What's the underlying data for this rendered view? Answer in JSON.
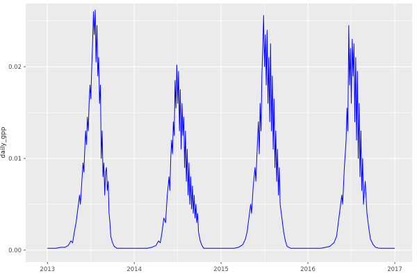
{
  "chart_data": {
    "type": "line",
    "title": "",
    "xlabel": "",
    "ylabel": "daily_gpp",
    "series_name": "daily_gpp",
    "legend": "none",
    "grid": "on",
    "xlim": [
      2012.75,
      2017.2
    ],
    "ylim": [
      -0.0013,
      0.0269
    ],
    "x_ticks": [
      2013,
      2014,
      2015,
      2016,
      2017
    ],
    "x_tick_labels": [
      "2013",
      "2014",
      "2015",
      "2016",
      "2017"
    ],
    "x_minor_ticks": [
      2013.5,
      2014.5,
      2015.5,
      2016.5
    ],
    "y_ticks": [
      0,
      0.01,
      0.02
    ],
    "y_tick_labels": [
      "0.00",
      "0.01",
      "0.02"
    ],
    "y_minor_ticks": [
      0.005,
      0.015,
      0.025
    ],
    "colors": {
      "line": "#0000FF",
      "panel_background": "#EBEBEB",
      "gridline": "#FFFFFF",
      "tick_label": "#4D4D4D",
      "tick_mark": "#333333",
      "outer_background": "#FFFFFF"
    },
    "points": [
      [
        2013.0,
        0.0002
      ],
      [
        2013.05,
        0.0002
      ],
      [
        2013.1,
        0.0002
      ],
      [
        2013.15,
        0.0003
      ],
      [
        2013.2,
        0.0003
      ],
      [
        2013.24,
        0.0005
      ],
      [
        2013.27,
        0.001
      ],
      [
        2013.29,
        0.0008
      ],
      [
        2013.31,
        0.002
      ],
      [
        2013.33,
        0.003
      ],
      [
        2013.35,
        0.0045
      ],
      [
        2013.37,
        0.006
      ],
      [
        2013.38,
        0.005
      ],
      [
        2013.4,
        0.008
      ],
      [
        2013.41,
        0.0095
      ],
      [
        2013.42,
        0.0085
      ],
      [
        2013.43,
        0.011
      ],
      [
        2013.44,
        0.013
      ],
      [
        2013.45,
        0.0115
      ],
      [
        2013.46,
        0.0145
      ],
      [
        2013.47,
        0.013
      ],
      [
        2013.48,
        0.016
      ],
      [
        2013.49,
        0.018
      ],
      [
        2013.5,
        0.0165
      ],
      [
        2013.51,
        0.02
      ],
      [
        2013.52,
        0.0225
      ],
      [
        2013.53,
        0.026
      ],
      [
        2013.54,
        0.0235
      ],
      [
        2013.55,
        0.0262
      ],
      [
        2013.56,
        0.0205
      ],
      [
        2013.57,
        0.0245
      ],
      [
        2013.58,
        0.019
      ],
      [
        2013.59,
        0.021
      ],
      [
        2013.6,
        0.016
      ],
      [
        2013.61,
        0.018
      ],
      [
        2013.62,
        0.01
      ],
      [
        2013.63,
        0.013
      ],
      [
        2013.64,
        0.008
      ],
      [
        2013.65,
        0.0095
      ],
      [
        2013.66,
        0.006
      ],
      [
        2013.67,
        0.0085
      ],
      [
        2013.68,
        0.009
      ],
      [
        2013.69,
        0.0065
      ],
      [
        2013.7,
        0.0075
      ],
      [
        2013.71,
        0.004
      ],
      [
        2013.72,
        0.003
      ],
      [
        2013.73,
        0.0015
      ],
      [
        2013.75,
        0.0008
      ],
      [
        2013.77,
        0.0004
      ],
      [
        2013.8,
        0.0002
      ],
      [
        2013.85,
        0.0002
      ],
      [
        2013.9,
        0.0002
      ],
      [
        2013.95,
        0.0002
      ],
      [
        2014.0,
        0.0002
      ],
      [
        2014.05,
        0.0002
      ],
      [
        2014.1,
        0.0002
      ],
      [
        2014.15,
        0.0002
      ],
      [
        2014.2,
        0.0003
      ],
      [
        2014.25,
        0.0005
      ],
      [
        2014.28,
        0.001
      ],
      [
        2014.3,
        0.0008
      ],
      [
        2014.32,
        0.002
      ],
      [
        2014.34,
        0.0035
      ],
      [
        2014.36,
        0.003
      ],
      [
        2014.38,
        0.006
      ],
      [
        2014.4,
        0.008
      ],
      [
        2014.41,
        0.0065
      ],
      [
        2014.42,
        0.01
      ],
      [
        2014.43,
        0.012
      ],
      [
        2014.44,
        0.0105
      ],
      [
        2014.45,
        0.014
      ],
      [
        2014.46,
        0.0125
      ],
      [
        2014.47,
        0.0185
      ],
      [
        2014.48,
        0.0155
      ],
      [
        2014.49,
        0.0202
      ],
      [
        2014.5,
        0.016
      ],
      [
        2014.51,
        0.0195
      ],
      [
        2014.52,
        0.013
      ],
      [
        2014.53,
        0.0175
      ],
      [
        2014.54,
        0.011
      ],
      [
        2014.55,
        0.016
      ],
      [
        2014.56,
        0.0125
      ],
      [
        2014.57,
        0.0145
      ],
      [
        2014.58,
        0.009
      ],
      [
        2014.59,
        0.013
      ],
      [
        2014.6,
        0.0075
      ],
      [
        2014.61,
        0.011
      ],
      [
        2014.62,
        0.006
      ],
      [
        2014.63,
        0.0095
      ],
      [
        2014.64,
        0.005
      ],
      [
        2014.65,
        0.008
      ],
      [
        2014.66,
        0.0045
      ],
      [
        2014.67,
        0.007
      ],
      [
        2014.68,
        0.004
      ],
      [
        2014.69,
        0.006
      ],
      [
        2014.7,
        0.0035
      ],
      [
        2014.71,
        0.005
      ],
      [
        2014.72,
        0.003
      ],
      [
        2014.73,
        0.004
      ],
      [
        2014.74,
        0.002
      ],
      [
        2014.76,
        0.001
      ],
      [
        2014.78,
        0.0005
      ],
      [
        2014.8,
        0.0002
      ],
      [
        2014.85,
        0.0002
      ],
      [
        2014.9,
        0.0002
      ],
      [
        2014.95,
        0.0002
      ],
      [
        2015.0,
        0.0002
      ],
      [
        2015.05,
        0.0002
      ],
      [
        2015.1,
        0.0002
      ],
      [
        2015.15,
        0.0002
      ],
      [
        2015.2,
        0.0003
      ],
      [
        2015.25,
        0.0006
      ],
      [
        2015.28,
        0.0012
      ],
      [
        2015.3,
        0.002
      ],
      [
        2015.32,
        0.0035
      ],
      [
        2015.34,
        0.005
      ],
      [
        2015.35,
        0.004
      ],
      [
        2015.37,
        0.007
      ],
      [
        2015.39,
        0.009
      ],
      [
        2015.4,
        0.0075
      ],
      [
        2015.42,
        0.012
      ],
      [
        2015.43,
        0.014
      ],
      [
        2015.44,
        0.0105
      ],
      [
        2015.45,
        0.016
      ],
      [
        2015.46,
        0.013
      ],
      [
        2015.47,
        0.019
      ],
      [
        2015.48,
        0.022
      ],
      [
        2015.49,
        0.0256
      ],
      [
        2015.5,
        0.02
      ],
      [
        2015.51,
        0.0235
      ],
      [
        2015.52,
        0.018
      ],
      [
        2015.53,
        0.024
      ],
      [
        2015.54,
        0.016
      ],
      [
        2015.55,
        0.021
      ],
      [
        2015.56,
        0.014
      ],
      [
        2015.57,
        0.0225
      ],
      [
        2015.58,
        0.013
      ],
      [
        2015.59,
        0.019
      ],
      [
        2015.6,
        0.011
      ],
      [
        2015.61,
        0.0165
      ],
      [
        2015.62,
        0.009
      ],
      [
        2015.63,
        0.013
      ],
      [
        2015.64,
        0.0075
      ],
      [
        2015.65,
        0.011
      ],
      [
        2015.66,
        0.006
      ],
      [
        2015.67,
        0.009
      ],
      [
        2015.68,
        0.005
      ],
      [
        2015.7,
        0.0035
      ],
      [
        2015.72,
        0.002
      ],
      [
        2015.74,
        0.001
      ],
      [
        2015.76,
        0.0004
      ],
      [
        2015.8,
        0.0002
      ],
      [
        2015.85,
        0.0002
      ],
      [
        2015.9,
        0.0002
      ],
      [
        2015.95,
        0.0002
      ],
      [
        2016.0,
        0.0002
      ],
      [
        2016.05,
        0.0002
      ],
      [
        2016.1,
        0.0002
      ],
      [
        2016.15,
        0.0002
      ],
      [
        2016.2,
        0.0003
      ],
      [
        2016.25,
        0.0004
      ],
      [
        2016.3,
        0.0008
      ],
      [
        2016.33,
        0.0015
      ],
      [
        2016.35,
        0.003
      ],
      [
        2016.37,
        0.0045
      ],
      [
        2016.39,
        0.006
      ],
      [
        2016.4,
        0.005
      ],
      [
        2016.42,
        0.009
      ],
      [
        2016.44,
        0.012
      ],
      [
        2016.45,
        0.0155
      ],
      [
        2016.46,
        0.013
      ],
      [
        2016.47,
        0.0245
      ],
      [
        2016.48,
        0.018
      ],
      [
        2016.49,
        0.022
      ],
      [
        2016.5,
        0.016
      ],
      [
        2016.51,
        0.023
      ],
      [
        2016.52,
        0.019
      ],
      [
        2016.53,
        0.0225
      ],
      [
        2016.54,
        0.014
      ],
      [
        2016.55,
        0.021
      ],
      [
        2016.56,
        0.012
      ],
      [
        2016.57,
        0.0195
      ],
      [
        2016.58,
        0.01
      ],
      [
        2016.59,
        0.016
      ],
      [
        2016.6,
        0.008
      ],
      [
        2016.61,
        0.013
      ],
      [
        2016.62,
        0.0065
      ],
      [
        2016.63,
        0.01
      ],
      [
        2016.64,
        0.005
      ],
      [
        2016.66,
        0.0075
      ],
      [
        2016.68,
        0.004
      ],
      [
        2016.7,
        0.0025
      ],
      [
        2016.72,
        0.0012
      ],
      [
        2016.75,
        0.0006
      ],
      [
        2016.78,
        0.0003
      ],
      [
        2016.82,
        0.0002
      ],
      [
        2016.86,
        0.0002
      ],
      [
        2016.9,
        0.0002
      ],
      [
        2016.95,
        0.0002
      ],
      [
        2017.0,
        0.0002
      ]
    ]
  }
}
